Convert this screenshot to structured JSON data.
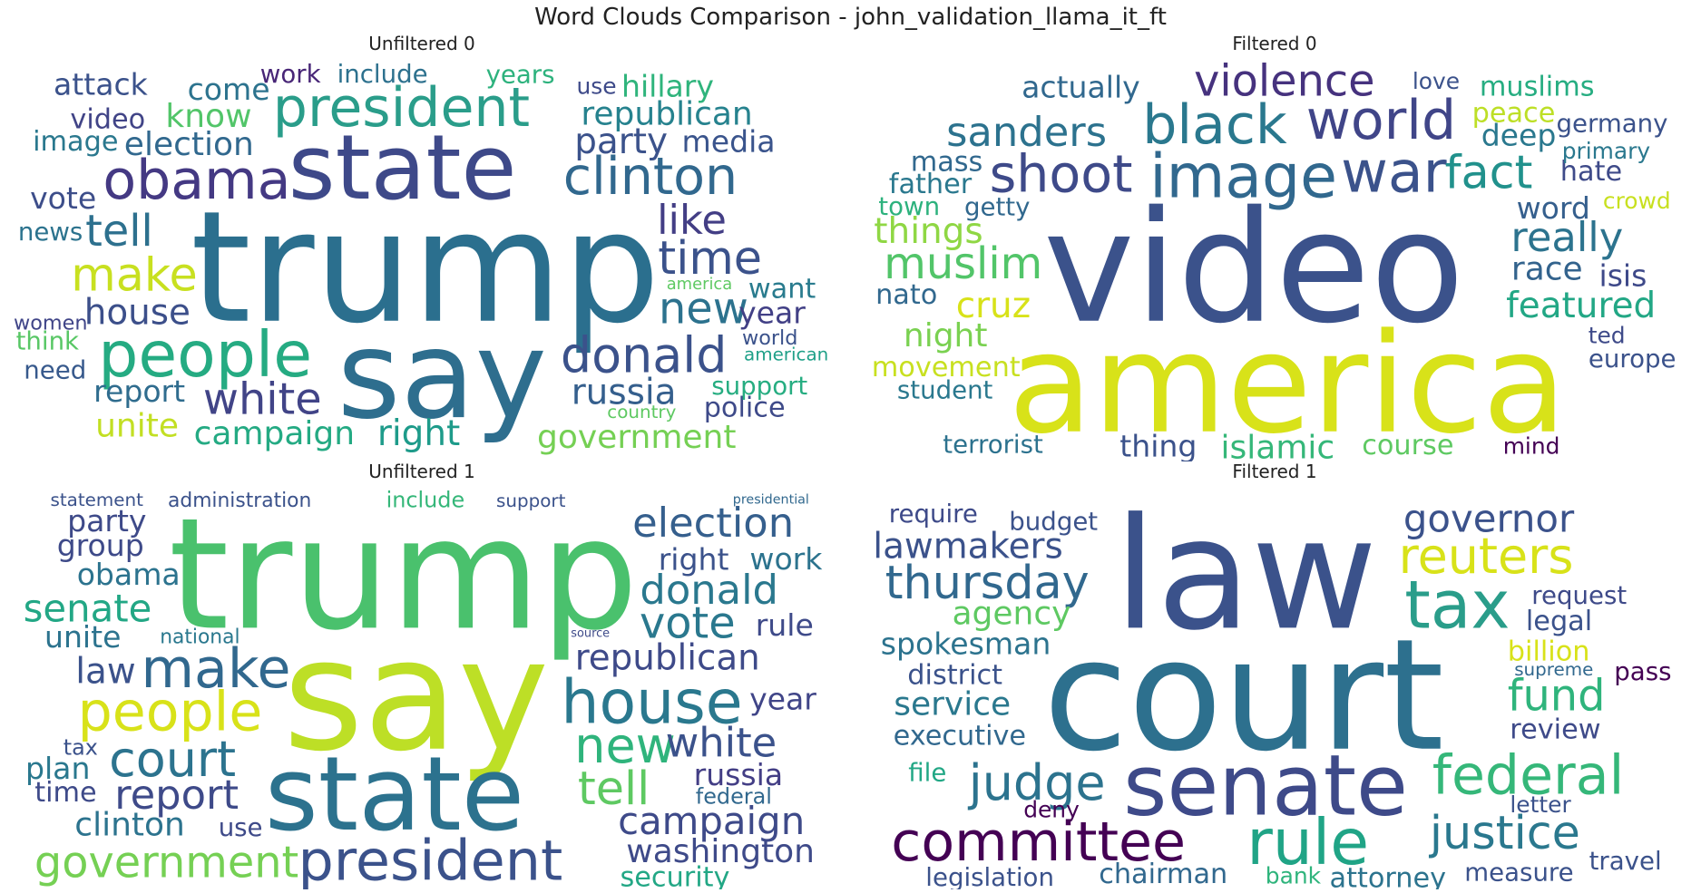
{
  "title": "Word Clouds Comparison - john_validation_llama_it_ft",
  "chart_data": [
    {
      "type": "wordcloud",
      "title": "Unfiltered 0",
      "words": [
        [
          "trump",
          100,
          "#2b6f8e"
        ],
        [
          "say",
          80,
          "#2e6e8e"
        ],
        [
          "state",
          60,
          "#3e4989"
        ],
        [
          "people",
          42,
          "#25ab82"
        ],
        [
          "obama",
          36,
          "#443983"
        ],
        [
          "president",
          36,
          "#2a9d8a"
        ],
        [
          "clinton",
          34,
          "#31688e"
        ],
        [
          "donald",
          32,
          "#3b528b"
        ],
        [
          "time",
          30,
          "#3b528b"
        ],
        [
          "make",
          30,
          "#c8e020"
        ],
        [
          "new",
          28,
          "#2c728e"
        ],
        [
          "white",
          28,
          "#414487"
        ],
        [
          "tell",
          28,
          "#2d708e"
        ],
        [
          "like",
          26,
          "#433e85"
        ],
        [
          "house",
          22,
          "#3c4f8a"
        ],
        [
          "right",
          22,
          "#1e9b8a"
        ],
        [
          "party",
          22,
          "#3b528b"
        ],
        [
          "russia",
          22,
          "#355f8d"
        ],
        [
          "election",
          20,
          "#31688e"
        ],
        [
          "campaign",
          20,
          "#24aa83"
        ],
        [
          "government",
          20,
          "#75d054"
        ],
        [
          "know",
          20,
          "#52c569"
        ],
        [
          "republican",
          20,
          "#26828e"
        ],
        [
          "unite",
          20,
          "#c2df23"
        ],
        [
          "report",
          18,
          "#2f6c8e"
        ],
        [
          "vote",
          18,
          "#3d4e8a"
        ],
        [
          "year",
          18,
          "#424086"
        ],
        [
          "media",
          18,
          "#3a548c"
        ],
        [
          "come",
          18,
          "#2c738e"
        ],
        [
          "hillary",
          18,
          "#2fb47c"
        ],
        [
          "attack",
          18,
          "#3b528b"
        ],
        [
          "video",
          16,
          "#414487"
        ],
        [
          "police",
          16,
          "#3e4a89"
        ],
        [
          "want",
          16,
          "#297b8e"
        ],
        [
          "image",
          16,
          "#2a788e"
        ],
        [
          "include",
          14,
          "#2d718e"
        ],
        [
          "years",
          14,
          "#2db27d"
        ],
        [
          "work",
          14,
          "#482677"
        ],
        [
          "support",
          14,
          "#26ad81"
        ],
        [
          "country",
          14,
          "#5ec962"
        ],
        [
          "think",
          14,
          "#58c765"
        ],
        [
          "american",
          14,
          "#1fa088"
        ],
        [
          "news",
          14,
          "#2c738e"
        ],
        [
          "need",
          14,
          "#37598c"
        ],
        [
          "america",
          12,
          "#5ec962"
        ],
        [
          "use",
          12,
          "#3e4a89"
        ],
        [
          "world",
          10,
          "#3b528b"
        ],
        [
          "women",
          10,
          "#404588"
        ]
      ]
    },
    {
      "type": "wordcloud",
      "title": "Filtered 0",
      "words": [
        [
          "video",
          100,
          "#3b528b"
        ],
        [
          "america",
          90,
          "#d8e219"
        ],
        [
          "image",
          40,
          "#31688e"
        ],
        [
          "war",
          38,
          "#3b528b"
        ],
        [
          "black",
          36,
          "#2a788e"
        ],
        [
          "world",
          36,
          "#404588"
        ],
        [
          "shoot",
          34,
          "#3e4a89"
        ],
        [
          "fact",
          30,
          "#21918c"
        ],
        [
          "muslim",
          28,
          "#52c569"
        ],
        [
          "violence",
          28,
          "#46327e"
        ],
        [
          "sanders",
          26,
          "#2c728e"
        ],
        [
          "really",
          26,
          "#2c738e"
        ],
        [
          "featured",
          22,
          "#22a785"
        ],
        [
          "cruz",
          22,
          "#d8e219"
        ],
        [
          "things",
          22,
          "#8fd744"
        ],
        [
          "race",
          20,
          "#33638d"
        ],
        [
          "islamic",
          20,
          "#35b779"
        ],
        [
          "night",
          20,
          "#7ad151"
        ],
        [
          "actually",
          18,
          "#31688e"
        ],
        [
          "word",
          18,
          "#355f8d"
        ],
        [
          "deep",
          18,
          "#2a788e"
        ],
        [
          "isis",
          18,
          "#3e4989"
        ],
        [
          "thing",
          18,
          "#3b528b"
        ],
        [
          "father",
          16,
          "#2a788e"
        ],
        [
          "course",
          16,
          "#5ec962"
        ],
        [
          "movement",
          16,
          "#c8e020"
        ],
        [
          "nato",
          16,
          "#31688e"
        ],
        [
          "peace",
          16,
          "#bddf26"
        ],
        [
          "hate",
          16,
          "#3e4a89"
        ],
        [
          "muslims",
          16,
          "#26ad81"
        ],
        [
          "mass",
          16,
          "#31688e"
        ],
        [
          "getty",
          14,
          "#31688e"
        ],
        [
          "student",
          14,
          "#2a788e"
        ],
        [
          "germany",
          14,
          "#3b528b"
        ],
        [
          "terrorist",
          14,
          "#2c728e"
        ],
        [
          "town",
          14,
          "#2db27d"
        ],
        [
          "europe",
          14,
          "#3b528b"
        ],
        [
          "love",
          12,
          "#3b528b"
        ],
        [
          "crowd",
          12,
          "#c8e020"
        ],
        [
          "primary",
          12,
          "#2a788e"
        ],
        [
          "mind",
          12,
          "#440154"
        ],
        [
          "ted",
          12,
          "#3e4a89"
        ]
      ]
    },
    {
      "type": "wordcloud",
      "title": "Unfiltered 1",
      "words": [
        [
          "say",
          100,
          "#bddf26"
        ],
        [
          "trump",
          100,
          "#4ac16d"
        ],
        [
          "state",
          68,
          "#2c728e"
        ],
        [
          "president",
          52,
          "#3b528b"
        ],
        [
          "house",
          40,
          "#2a788e"
        ],
        [
          "people",
          36,
          "#d8e219"
        ],
        [
          "make",
          36,
          "#31688e"
        ],
        [
          "republican",
          32,
          "#3e4a89"
        ],
        [
          "court",
          32,
          "#2c738e"
        ],
        [
          "new",
          32,
          "#2fb47c"
        ],
        [
          "tell",
          30,
          "#5ec962"
        ],
        [
          "government",
          28,
          "#75d054"
        ],
        [
          "vote",
          28,
          "#2a788e"
        ],
        [
          "report",
          26,
          "#3e4a89"
        ],
        [
          "election",
          26,
          "#355f8d"
        ],
        [
          "white",
          26,
          "#3b528b"
        ],
        [
          "donald",
          26,
          "#2a788e"
        ],
        [
          "campaign",
          24,
          "#3e4a89"
        ],
        [
          "senate",
          24,
          "#22a785"
        ],
        [
          "law",
          22,
          "#3b528b"
        ],
        [
          "clinton",
          20,
          "#2c738e"
        ],
        [
          "washington",
          20,
          "#3e4a89"
        ],
        [
          "russia",
          18,
          "#433e85"
        ],
        [
          "obama",
          18,
          "#2c738e"
        ],
        [
          "right",
          18,
          "#3b528b"
        ],
        [
          "unite",
          18,
          "#2c738e"
        ],
        [
          "year",
          18,
          "#404588"
        ],
        [
          "group",
          18,
          "#3e4a89"
        ],
        [
          "include",
          18,
          "#35b779"
        ],
        [
          "federal",
          18,
          "#31688e"
        ],
        [
          "party",
          18,
          "#3e4a89"
        ],
        [
          "plan",
          18,
          "#2a788e"
        ],
        [
          "work",
          18,
          "#2c738e"
        ],
        [
          "tax",
          18,
          "#3b528b"
        ],
        [
          "rule",
          18,
          "#3e4a89"
        ],
        [
          "administration",
          16,
          "#3b528b"
        ],
        [
          "security",
          16,
          "#22a785"
        ],
        [
          "national",
          16,
          "#2a788e"
        ],
        [
          "time",
          16,
          "#3e4a89"
        ],
        [
          "statement",
          14,
          "#3b528b"
        ],
        [
          "support",
          14,
          "#3b528b"
        ],
        [
          "use",
          14,
          "#3e4a89"
        ],
        [
          "presidential",
          14,
          "#31688e"
        ],
        [
          "source",
          12,
          "#3e4a89"
        ]
      ]
    },
    {
      "type": "wordcloud",
      "title": "Filtered 1",
      "words": [
        [
          "court",
          100,
          "#2d708e"
        ],
        [
          "law",
          100,
          "#3b528b"
        ],
        [
          "senate",
          56,
          "#3e4a89"
        ],
        [
          "tax",
          44,
          "#2a9d8a"
        ],
        [
          "rule",
          42,
          "#20a486"
        ],
        [
          "committee",
          36,
          "#440154"
        ],
        [
          "federal",
          36,
          "#35b779"
        ],
        [
          "judge",
          32,
          "#2c738e"
        ],
        [
          "reuters",
          32,
          "#d8e219"
        ],
        [
          "thursday",
          30,
          "#31688e"
        ],
        [
          "justice",
          30,
          "#2a788e"
        ],
        [
          "fund",
          28,
          "#2fb47c"
        ],
        [
          "governor",
          24,
          "#3b528b"
        ],
        [
          "lawmakers",
          22,
          "#3b528b"
        ],
        [
          "service",
          20,
          "#2a788e"
        ],
        [
          "agency",
          20,
          "#5ec962"
        ],
        [
          "spokesman",
          18,
          "#2c738e"
        ],
        [
          "billion",
          16,
          "#d8e219"
        ],
        [
          "executive",
          16,
          "#31688e"
        ],
        [
          "district",
          16,
          "#3b528b"
        ],
        [
          "review",
          16,
          "#3e4a89"
        ],
        [
          "legal",
          16,
          "#3b528b"
        ],
        [
          "chairman",
          16,
          "#31688e"
        ],
        [
          "attorney",
          16,
          "#2c738e"
        ],
        [
          "request",
          14,
          "#3e4a89"
        ],
        [
          "budget",
          14,
          "#3b528b"
        ],
        [
          "measure",
          14,
          "#3b528b"
        ],
        [
          "file",
          14,
          "#22a785"
        ],
        [
          "travel",
          14,
          "#3b528b"
        ],
        [
          "pass",
          14,
          "#440154"
        ],
        [
          "legislation",
          14,
          "#3b528b"
        ],
        [
          "require",
          14,
          "#3e4a89"
        ],
        [
          "supreme",
          14,
          "#31688e"
        ],
        [
          "deny",
          12,
          "#440154"
        ],
        [
          "bank",
          12,
          "#2fb47c"
        ],
        [
          "letter",
          12,
          "#3b528b"
        ]
      ]
    }
  ]
}
